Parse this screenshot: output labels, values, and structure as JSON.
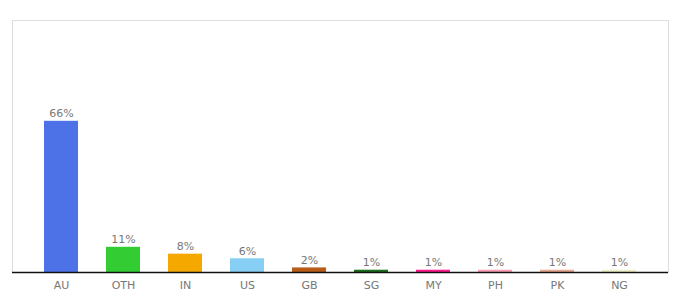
{
  "chart_data": {
    "type": "bar",
    "categories": [
      "AU",
      "OTH",
      "IN",
      "US",
      "GB",
      "SG",
      "MY",
      "PH",
      "PK",
      "NG"
    ],
    "values": [
      66,
      11,
      8,
      6,
      2,
      1,
      1,
      1,
      1,
      1
    ],
    "value_labels": [
      "66%",
      "11%",
      "8%",
      "6%",
      "2%",
      "1%",
      "1%",
      "1%",
      "1%",
      "1%"
    ],
    "colors": [
      "#4d72e8",
      "#33cc33",
      "#f5a800",
      "#87cef5",
      "#b85c1a",
      "#1a6e1a",
      "#ff1a8c",
      "#ff9eb5",
      "#e8a890",
      "#f0f0c8"
    ],
    "ylim": [
      0,
      110
    ],
    "data_labels": true,
    "tick_labels": "x"
  }
}
